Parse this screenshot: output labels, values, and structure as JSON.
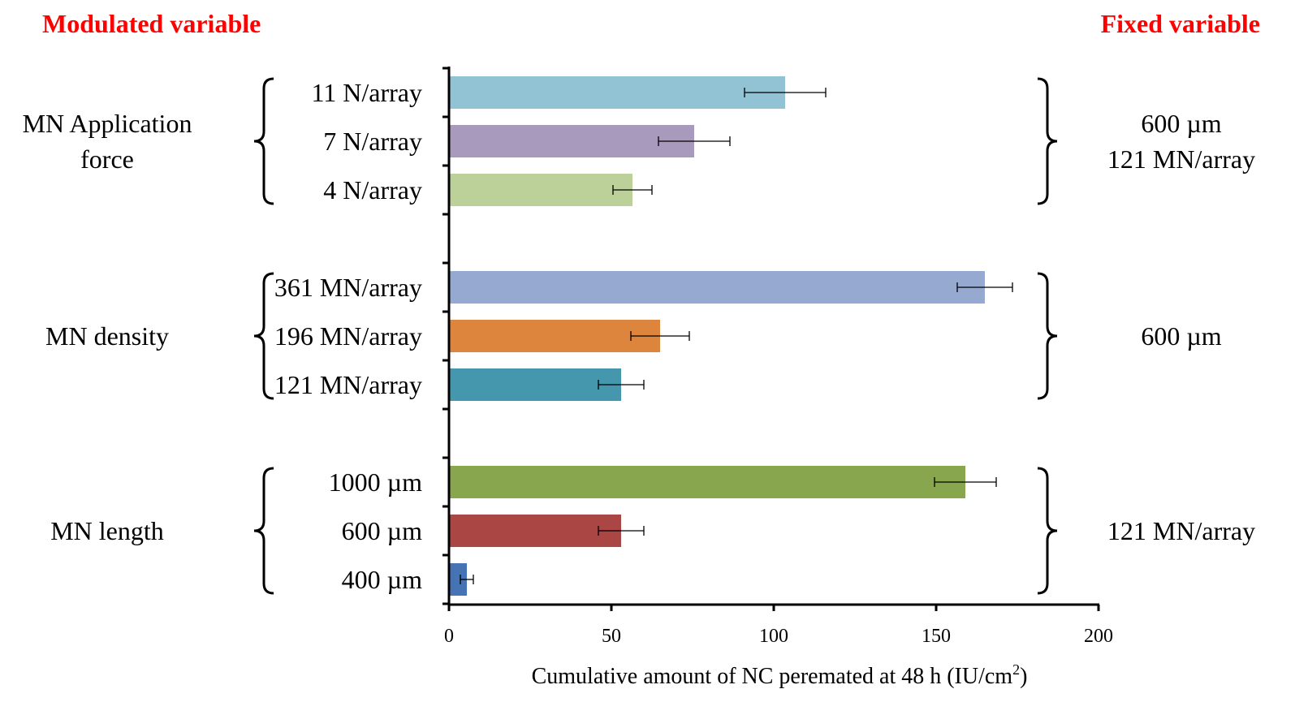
{
  "header": {
    "left": "Modulated variable",
    "right": "Fixed variable",
    "color": "#ff0000"
  },
  "chart_data": {
    "type": "bar",
    "orientation": "horizontal",
    "title": "",
    "xlabel_main": "Cumulative amount of NC peremated at 48 h (IU/cm",
    "xlabel_sup": "2",
    "xlabel_end": ")",
    "xlim": [
      0,
      200
    ],
    "xticks": [
      "0",
      "50",
      "100",
      "150",
      "200"
    ],
    "grid": false,
    "groups": [
      {
        "name_lines": [
          "MN Application",
          "force"
        ],
        "fixed_lines": [
          "600 µm",
          "121 MN/array"
        ],
        "bars": [
          {
            "label": "11 N/array",
            "value": 103.5,
            "error": 12.5,
            "color": "#92c3d4"
          },
          {
            "label": "7 N/array",
            "value": 75.5,
            "error": 11,
            "color": "#a89abd"
          },
          {
            "label": "4 N/array",
            "value": 56.5,
            "error": 6,
            "color": "#bcd099"
          }
        ]
      },
      {
        "name_lines": [
          "MN density"
        ],
        "fixed_lines": [
          "600 µm"
        ],
        "bars": [
          {
            "label": "361 MN/array",
            "value": 165,
            "error": 8.5,
            "color": "#95a9d1"
          },
          {
            "label": "196 MN/array",
            "value": 65,
            "error": 9,
            "color": "#dd843d"
          },
          {
            "label": "121 MN/array",
            "value": 53,
            "error": 7,
            "color": "#4597ae"
          }
        ]
      },
      {
        "name_lines": [
          "MN length"
        ],
        "fixed_lines": [
          "121 MN/array"
        ],
        "bars": [
          {
            "label": "1000 µm",
            "value": 159,
            "error": 9.5,
            "color": "#88a64e"
          },
          {
            "label": "600 µm",
            "value": 53,
            "error": 7,
            "color": "#aa4744"
          },
          {
            "label": "400 µm",
            "value": 5.5,
            "error": 2,
            "color": "#4673b3"
          }
        ]
      }
    ]
  }
}
